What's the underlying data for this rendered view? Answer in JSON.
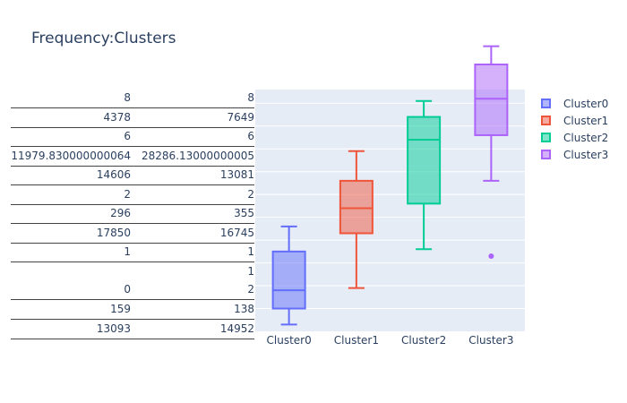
{
  "title": "Frequency:Clusters",
  "table": {
    "rows": [
      {
        "c1": [
          "8"
        ],
        "c2": [
          "8"
        ]
      },
      {
        "c1": [
          "4378"
        ],
        "c2": [
          "7649"
        ]
      },
      {
        "c1": [
          "6"
        ],
        "c2": [
          "6"
        ]
      },
      {
        "c1": [
          "11979.830000000064"
        ],
        "c2": [
          "28286.13000000005"
        ]
      },
      {
        "c1": [
          "14606"
        ],
        "c2": [
          "13081"
        ]
      },
      {
        "c1": [
          "2"
        ],
        "c2": [
          "2"
        ]
      },
      {
        "c1": [
          "296"
        ],
        "c2": [
          "355"
        ]
      },
      {
        "c1": [
          "17850"
        ],
        "c2": [
          "16745"
        ]
      },
      {
        "c1": [
          "1"
        ],
        "c2": [
          "1"
        ]
      },
      {
        "c1": [
          "0"
        ],
        "c2": [
          "1",
          "2"
        ]
      },
      {
        "c1": [
          "159"
        ],
        "c2": [
          "138"
        ]
      },
      {
        "c1": [
          "13093"
        ],
        "c2": [
          "14952"
        ]
      }
    ]
  },
  "chart_data": {
    "type": "box",
    "title": "Frequency:Clusters",
    "categories": [
      "Cluster0",
      "Cluster1",
      "Cluster2",
      "Cluster3"
    ],
    "ylim": [
      0,
      10.6
    ],
    "gridlines": [
      1,
      2,
      3,
      4,
      5,
      6,
      7,
      8,
      9,
      10
    ],
    "series": [
      {
        "name": "Cluster0",
        "color": "#636efa",
        "fill": "rgba(99,110,250,0.5)",
        "min": 0.3,
        "q1": 1.0,
        "median": 1.8,
        "q3": 3.5,
        "max": 4.6,
        "outliers": []
      },
      {
        "name": "Cluster1",
        "color": "#EF553B",
        "fill": "rgba(239,85,59,0.5)",
        "min": 1.9,
        "q1": 4.3,
        "median": 5.4,
        "q3": 6.6,
        "max": 7.9,
        "outliers": []
      },
      {
        "name": "Cluster2",
        "color": "#00cc96",
        "fill": "rgba(0,204,150,0.5)",
        "min": 3.6,
        "q1": 5.6,
        "median": 8.4,
        "q3": 9.4,
        "max": 10.1,
        "outliers": []
      },
      {
        "name": "Cluster3",
        "color": "#ab63fa",
        "fill": "rgba(171,99,250,0.5)",
        "min": 6.6,
        "q1": 8.6,
        "median": 10.2,
        "q3": 11.7,
        "max": 12.5,
        "outliers": [
          3.3
        ]
      }
    ],
    "legend": [
      "Cluster0",
      "Cluster1",
      "Cluster2",
      "Cluster3"
    ],
    "legend_position": "right"
  }
}
